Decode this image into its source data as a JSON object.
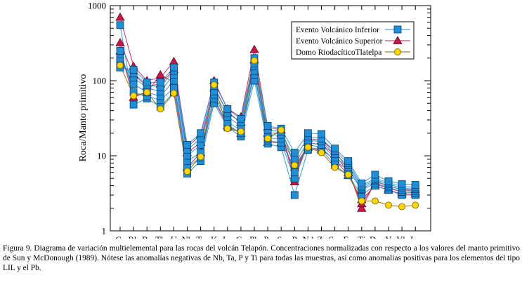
{
  "chart_data": {
    "type": "line",
    "title": "",
    "ylabel": "Roca/Manto primitivo",
    "xlabel": "",
    "yscale": "log",
    "ylim": [
      1,
      1000
    ],
    "yticks": [
      "1",
      "10",
      "100",
      "1000"
    ],
    "legend_position": "top-right",
    "colors": {
      "inferior_fill": "#1f8fd8",
      "inferior_stroke": "#0a3d6b",
      "superior_fill": "#c8184a",
      "superior_stroke": "#5a0a20",
      "domo_fill": "#ffd700",
      "domo_stroke": "#8a6a00"
    },
    "categories": [
      "Cs",
      "Rb",
      "Ba",
      "Th",
      "U",
      "Nb",
      "Ta",
      "K",
      "La",
      "Ce",
      "Pb",
      "Pr",
      "Sr",
      "P",
      "Nd",
      "Zr",
      "Sm",
      "Eu",
      "Ti",
      "Dy",
      "Y",
      "Yb",
      "Lu"
    ],
    "series": [
      {
        "name": "Evento Volcánico Inferior",
        "marker": "square",
        "samples": [
          [
            550,
            48,
            58,
            45,
            70,
            5.8,
            8.5,
            50,
            24,
            18,
            100,
            14.5,
            13,
            3,
            12,
            12,
            7.5,
            5.5,
            3,
            4,
            3.5,
            3,
            3
          ],
          [
            250,
            70,
            62,
            55,
            80,
            7,
            9.5,
            58,
            26,
            20,
            120,
            16,
            15,
            5,
            14,
            13,
            8.5,
            6.5,
            3.5,
            4.3,
            3.8,
            3.3,
            3.2
          ],
          [
            200,
            90,
            70,
            62,
            100,
            8.5,
            11,
            65,
            28,
            22,
            135,
            17,
            17,
            6,
            15,
            14,
            9.5,
            7,
            3.6,
            4.6,
            4,
            3.5,
            3.4
          ],
          [
            180,
            110,
            80,
            72,
            120,
            10,
            14,
            72,
            33,
            25,
            155,
            19,
            19,
            7.5,
            16,
            15.5,
            10.5,
            7.5,
            3.8,
            4.8,
            4.2,
            3.7,
            3.6
          ],
          [
            160,
            125,
            88,
            82,
            135,
            12,
            17,
            85,
            37,
            28,
            170,
            22,
            21,
            9,
            18,
            17,
            11.5,
            8,
            4,
            5,
            4.4,
            3.9,
            3.8
          ],
          [
            150,
            140,
            95,
            95,
            150,
            14,
            20,
            95,
            42,
            31,
            200,
            25,
            23,
            11,
            20,
            19.5,
            12.5,
            8.5,
            4.3,
            5.6,
            4.6,
            4.2,
            4.1
          ]
        ]
      },
      {
        "name": "Evento Volcánico Superior",
        "marker": "triangle",
        "samples": [
          [
            700,
            155,
            100,
            110,
            180,
            13,
            19,
            100,
            42,
            33,
            260,
            24,
            22,
            4.5,
            17,
            16,
            11.5,
            6.5,
            2,
            4.5,
            4,
            3.5,
            3.6
          ],
          [
            320,
            120,
            85,
            90,
            140,
            11,
            15,
            80,
            38,
            28,
            190,
            20,
            20,
            5.5,
            15,
            14,
            10.5,
            6,
            2.3,
            4.2,
            3.7,
            3.3,
            3.3
          ],
          [
            250,
            60,
            70,
            120,
            95,
            7,
            11,
            55,
            25,
            20,
            130,
            15,
            15,
            7,
            13,
            12,
            9,
            5.5,
            2.6,
            4,
            3.5,
            3.1,
            3.1
          ]
        ]
      },
      {
        "name": "Domo RiodacíticoTlatelpa",
        "marker": "circle",
        "samples": [
          [
            160,
            63,
            70,
            42,
            68,
            6.2,
            9.7,
            88,
            23,
            21,
            185,
            17,
            22,
            7.5,
            13,
            11,
            7,
            5.6,
            2.5,
            2.5,
            2.2,
            2.1,
            2.2
          ]
        ]
      }
    ]
  },
  "caption": "Figura 9. Diagrama de variación multielemental para las rocas del volcán Telapón. Concentraciones normalizadas con respecto a los valores del manto primitivo de Sun y McDonough (1989). Nótese las anomalías negativas de Nb, Ta, P y Ti para todas las muestras, así como anomalías positivas para los elementos del tipo LIL y el Pb."
}
